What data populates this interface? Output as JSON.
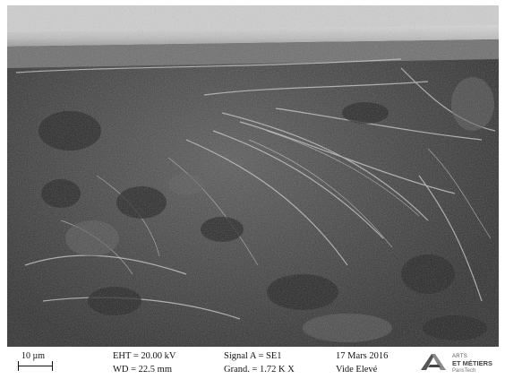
{
  "scale": {
    "label": "10 µm"
  },
  "params": {
    "eht": "EHT = 20.00 kV",
    "wd": "WD = 22.5 mm",
    "signal": "Signal A = SE1",
    "grand": "Grand. =    1.72 K X",
    "date": "17 Mars 2016",
    "vacuum": "Vide Elevé"
  },
  "logo": {
    "line1": "ARTS",
    "line2": "ET MÉTIERS",
    "line3": "ParisTech"
  },
  "colors": {
    "background": "#ffffff",
    "text": "#111111",
    "micrograph_dark": "#2b2b2b",
    "micrograph_light": "#bfbfbf"
  }
}
